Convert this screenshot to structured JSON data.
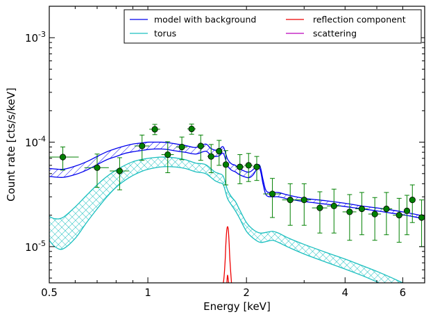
{
  "chart_data": {
    "type": "line",
    "title": "",
    "xlabel": "Energy [keV]",
    "ylabel": "Count rate [cts/s/keV]",
    "xscale": "log",
    "yscale": "log",
    "xlim": [
      0.5,
      7.0
    ],
    "ylim": [
      4.5e-06,
      0.002
    ],
    "grid": false,
    "legend_position": "top-right",
    "legend_columns": 2,
    "x_ticks": [
      {
        "value": 0.5,
        "label": "0.5"
      },
      {
        "value": 1,
        "label": "1"
      },
      {
        "value": 2,
        "label": "2"
      },
      {
        "value": 4,
        "label": "4"
      },
      {
        "value": 6,
        "label": "6"
      }
    ],
    "y_ticks": [
      {
        "value": 1e-05,
        "mantissa": "10",
        "exponent": "-5"
      },
      {
        "value": 0.0001,
        "mantissa": "10",
        "exponent": "-4"
      },
      {
        "value": 0.001,
        "mantissa": "10",
        "exponent": "-3"
      }
    ],
    "series": [
      {
        "name": "model with background",
        "color": "#0000ee",
        "band": "hatched",
        "x": [
          0.5,
          0.55,
          0.6,
          0.65,
          0.7,
          0.75,
          0.8,
          0.85,
          0.9,
          0.95,
          1.0,
          1.05,
          1.1,
          1.15,
          1.2,
          1.3,
          1.4,
          1.5,
          1.55,
          1.6,
          1.65,
          1.7,
          1.75,
          1.8,
          1.85,
          1.9,
          2.0,
          2.05,
          2.1,
          2.15,
          2.2,
          2.25,
          2.3,
          2.4,
          2.5,
          2.7,
          3.0,
          3.5,
          4.0,
          4.5,
          5.0,
          5.5,
          6.0,
          6.5,
          7.0
        ],
        "upper": [
          5.6e-05,
          5.5e-05,
          5.9e-05,
          6.5e-05,
          7.3e-05,
          8.1e-05,
          8.7e-05,
          9.2e-05,
          9.6e-05,
          9.8e-05,
          0.0001,
          0.0001,
          0.0001,
          9.9e-05,
          9.7e-05,
          9.3e-05,
          8.9e-05,
          9.6e-05,
          8.8e-05,
          8.4e-05,
          8.5e-05,
          9e-05,
          6.9e-05,
          6.2e-05,
          6e-05,
          5.6e-05,
          5.2e-05,
          5.2e-05,
          5.5e-05,
          6e-05,
          5.9e-05,
          4.3e-05,
          3.4e-05,
          3.3e-05,
          3.3e-05,
          3.1e-05,
          2.9e-05,
          2.75e-05,
          2.6e-05,
          2.45e-05,
          2.35e-05,
          2.25e-05,
          2.15e-05,
          2.05e-05,
          1.95e-05
        ],
        "lower": [
          4.7e-05,
          4.6e-05,
          4.9e-05,
          5.4e-05,
          6.1e-05,
          6.8e-05,
          7.3e-05,
          7.8e-05,
          8.1e-05,
          8.3e-05,
          8.5e-05,
          8.6e-05,
          8.6e-05,
          8.5e-05,
          8.3e-05,
          8e-05,
          7.7e-05,
          8.2e-05,
          7.6e-05,
          7.3e-05,
          7.4e-05,
          7.8e-05,
          6e-05,
          5.4e-05,
          5.2e-05,
          4.9e-05,
          4.6e-05,
          4.6e-05,
          4.9e-05,
          5.5e-05,
          5.5e-05,
          3.9e-05,
          3.1e-05,
          3e-05,
          3e-05,
          2.85e-05,
          2.7e-05,
          2.55e-05,
          2.42e-05,
          2.3e-05,
          2.2e-05,
          2.1e-05,
          2.02e-05,
          1.93e-05,
          1.84e-05
        ]
      },
      {
        "name": "torus",
        "color": "#1abfbf",
        "band": "crosshatched",
        "x": [
          0.5,
          0.52,
          0.55,
          0.6,
          0.65,
          0.7,
          0.75,
          0.8,
          0.85,
          0.9,
          0.95,
          1.0,
          1.1,
          1.2,
          1.3,
          1.4,
          1.5,
          1.6,
          1.65,
          1.7,
          1.75,
          1.8,
          1.85,
          1.9,
          2.0,
          2.1,
          2.2,
          2.3,
          2.4,
          2.5,
          2.7,
          3.0,
          3.5,
          4.0,
          4.5,
          5.0,
          5.5,
          6.0,
          6.5,
          7.0
        ],
        "upper": [
          1.95e-05,
          1.85e-05,
          1.9e-05,
          2.4e-05,
          3.1e-05,
          3.9e-05,
          4.7e-05,
          5.4e-05,
          6e-05,
          6.5e-05,
          6.8e-05,
          7e-05,
          7.2e-05,
          7.1e-05,
          6.8e-05,
          6.3e-05,
          6.1e-05,
          5.2e-05,
          5e-05,
          4.7e-05,
          3.5e-05,
          3e-05,
          2.7e-05,
          2.3e-05,
          1.7e-05,
          1.45e-05,
          1.35e-05,
          1.37e-05,
          1.4e-05,
          1.35e-05,
          1.2e-05,
          1.05e-05,
          8.8e-06,
          7.6e-06,
          6.6e-06,
          5.8e-06,
          5.1e-06,
          4.5e-06,
          4e-06,
          3.6e-06
        ],
        "lower": [
          1.15e-05,
          1e-05,
          9.5e-06,
          1.2e-05,
          1.7e-05,
          2.3e-05,
          3e-05,
          3.7e-05,
          4.3e-05,
          4.8e-05,
          5.2e-05,
          5.5e-05,
          5.8e-05,
          5.8e-05,
          5.6e-05,
          5.2e-05,
          5e-05,
          4.3e-05,
          4.1e-05,
          3.9e-05,
          2.9e-05,
          2.5e-05,
          2.2e-05,
          1.9e-05,
          1.4e-05,
          1.2e-05,
          1.1e-05,
          1.12e-05,
          1.15e-05,
          1.1e-05,
          9.8e-06,
          8.5e-06,
          7.1e-06,
          6.1e-06,
          5.3e-06,
          4.6e-06,
          4e-06,
          3.5e-06,
          3.1e-06,
          2.8e-06
        ]
      },
      {
        "name": "reflection component",
        "color": "#ee0000",
        "band": "none",
        "x": [
          1.65,
          1.7,
          1.72,
          1.73,
          1.74,
          1.75,
          1.76,
          1.77,
          1.78,
          1.8,
          1.82
        ],
        "upper": [
          3e-06,
          4.5e-06,
          7e-06,
          1.05e-05,
          1.4e-05,
          1.55e-05,
          1.45e-05,
          1.1e-05,
          7.5e-06,
          4.5e-06,
          3e-06
        ],
        "lower": [
          3e-06,
          3e-06,
          3.2e-06,
          3.6e-06,
          4.2e-06,
          5.3e-06,
          4.8e-06,
          4e-06,
          3.5e-06,
          3e-06,
          3e-06
        ]
      },
      {
        "name": "scattering",
        "color": "#bb00bb",
        "band": "none",
        "x": [],
        "upper": [],
        "lower": []
      }
    ],
    "data_points": {
      "color": "#008000",
      "x": [
        0.55,
        0.7,
        0.82,
        0.96,
        1.05,
        1.15,
        1.27,
        1.36,
        1.45,
        1.56,
        1.65,
        1.73,
        1.91,
        2.03,
        2.15,
        2.4,
        2.72,
        3.0,
        3.35,
        3.7,
        4.13,
        4.5,
        4.93,
        5.35,
        5.85,
        6.18,
        6.42,
        6.85
      ],
      "xerr": [
        0.065,
        0.06,
        0.055,
        0.05,
        0.04,
        0.05,
        0.05,
        0.04,
        0.04,
        0.04,
        0.04,
        0.035,
        0.06,
        0.06,
        0.06,
        0.15,
        0.15,
        0.15,
        0.18,
        0.18,
        0.2,
        0.2,
        0.22,
        0.22,
        0.25,
        0.12,
        0.12,
        0.15
      ],
      "y": [
        7.2e-05,
        5.7e-05,
        5.3e-05,
        9.2e-05,
        0.000133,
        7.6e-05,
        9e-05,
        0.000134,
        9.2e-05,
        7.3e-05,
        8.2e-05,
        6.1e-05,
        5.8e-05,
        6e-05,
        5.8e-05,
        3.2e-05,
        2.8e-05,
        2.8e-05,
        2.35e-05,
        2.45e-05,
        2.15e-05,
        2.3e-05,
        2.05e-05,
        2.3e-05,
        2e-05,
        2.2e-05,
        2.8e-05,
        1.9e-05
      ],
      "yerr_lo": [
        1.8e-05,
        2e-05,
        1.8e-05,
        2.5e-05,
        1.5e-05,
        2.5e-05,
        2.2e-05,
        1.5e-05,
        2.5e-05,
        2.2e-05,
        2.2e-05,
        2.2e-05,
        1.8e-05,
        1.8e-05,
        1.5e-05,
        1.3e-05,
        1.2e-05,
        1.2e-05,
        1e-05,
        1.1e-05,
        1e-05,
        1e-05,
        9e-06,
        1e-05,
        9e-06,
        9e-06,
        1.1e-05,
        9e-06
      ],
      "yerr_hi": [
        1.8e-05,
        2e-05,
        1.8e-05,
        2.5e-05,
        1.5e-05,
        2.5e-05,
        2.2e-05,
        1.5e-05,
        2.5e-05,
        2.2e-05,
        2.2e-05,
        2.2e-05,
        1.8e-05,
        1.8e-05,
        1.5e-05,
        1.3e-05,
        1.2e-05,
        1.2e-05,
        1e-05,
        1.1e-05,
        1e-05,
        1e-05,
        9e-06,
        1e-05,
        9e-06,
        9e-06,
        1.1e-05,
        9e-06
      ]
    }
  }
}
